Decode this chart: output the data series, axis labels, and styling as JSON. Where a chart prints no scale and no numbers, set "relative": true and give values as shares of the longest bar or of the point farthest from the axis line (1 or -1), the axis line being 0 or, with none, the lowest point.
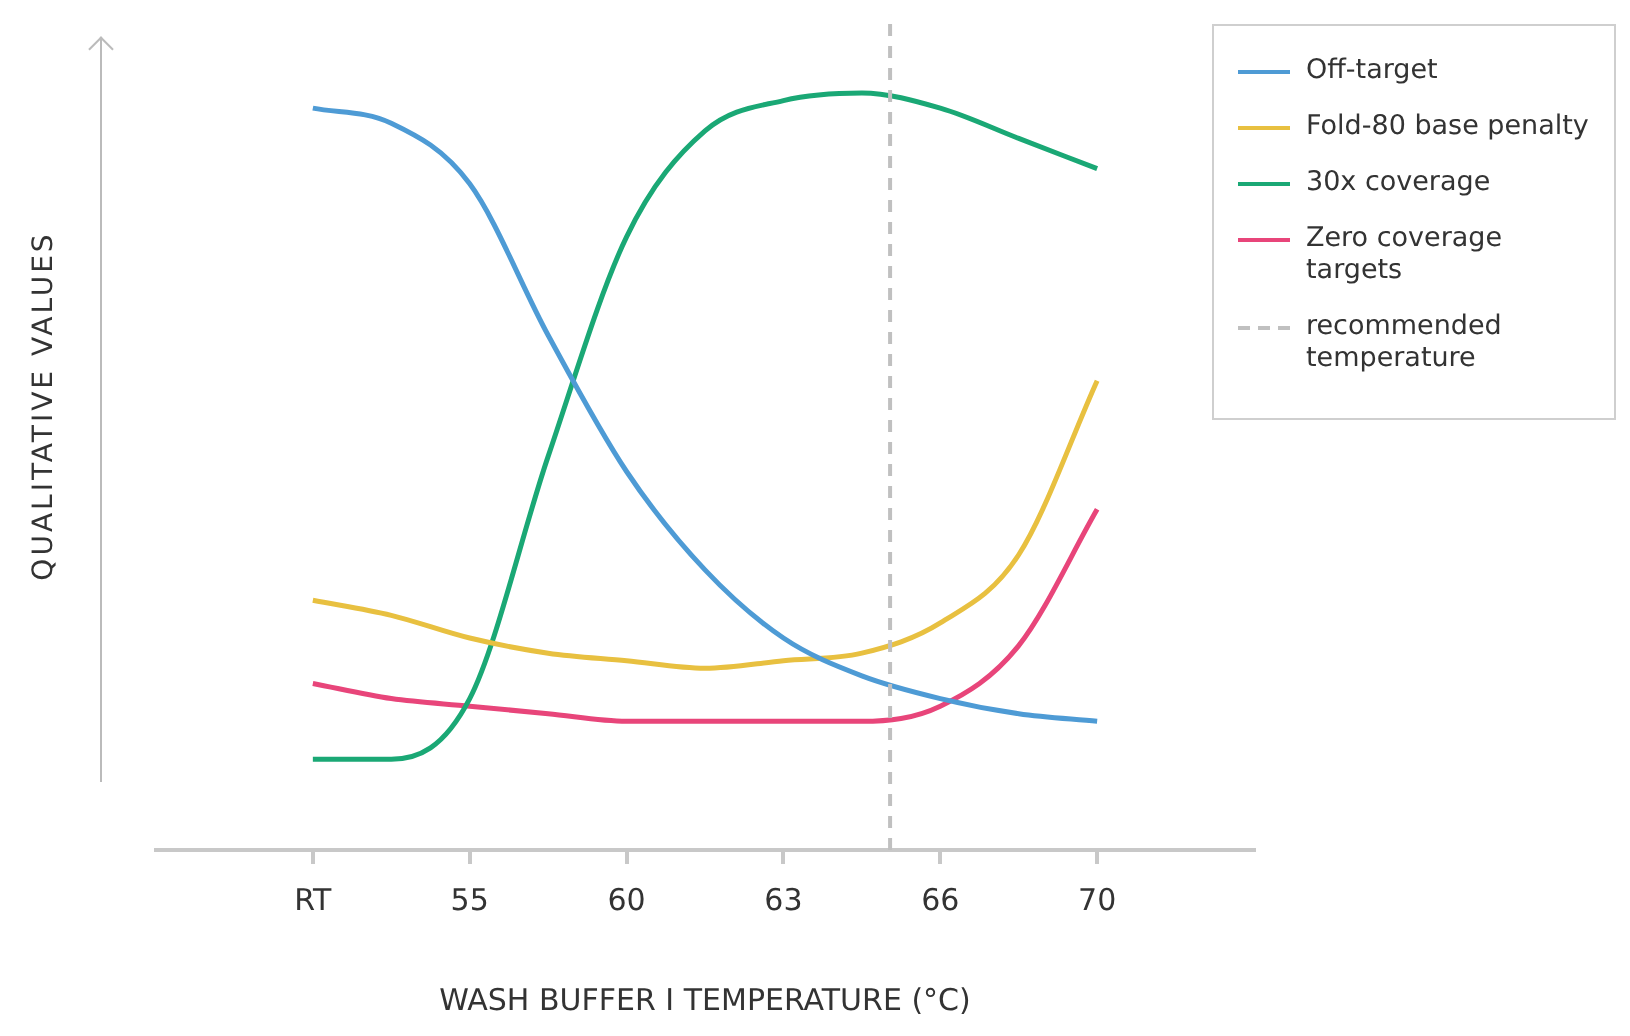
{
  "chart_data": {
    "type": "line",
    "xlabel": "WASH BUFFER I TEMPERATURE (°C)",
    "ylabel": "QUALITATIVE VALUES",
    "relative": true,
    "legend": "top right",
    "categories": [
      null,
      null,
      "RT",
      null,
      "55",
      null,
      "60",
      null,
      "63",
      null,
      "66",
      null,
      "70",
      null,
      null
    ],
    "series": [
      {
        "name": "Off-target",
        "color": "#4e9bd5",
        "values": [
          null,
          null,
          0.98,
          0.96,
          0.88,
          0.68,
          0.5,
          0.37,
          0.28,
          0.23,
          0.2,
          0.18,
          0.17,
          null,
          null
        ]
      },
      {
        "name": "Fold-80 base penalty",
        "color": "#e8c040",
        "values": [
          null,
          null,
          0.33,
          0.31,
          0.28,
          0.26,
          0.25,
          0.24,
          0.25,
          0.26,
          0.3,
          0.39,
          0.62,
          null,
          null
        ]
      },
      {
        "name": "30x coverage",
        "color": "#1aa875",
        "values": [
          null,
          null,
          0.12,
          0.12,
          0.2,
          0.52,
          0.81,
          0.95,
          0.99,
          1.0,
          0.98,
          0.94,
          0.9,
          null,
          null
        ]
      },
      {
        "name": "Zero coverage targets",
        "color": "#e8457a",
        "values": [
          null,
          null,
          0.22,
          0.2,
          0.19,
          0.18,
          0.17,
          0.17,
          0.17,
          0.17,
          0.19,
          0.27,
          0.45,
          null,
          null
        ]
      }
    ],
    "ref_lines": [
      {
        "axis": "x",
        "label": "recommended temperature",
        "color": "#c0c0c0",
        "line_style": "dashed"
      }
    ]
  }
}
